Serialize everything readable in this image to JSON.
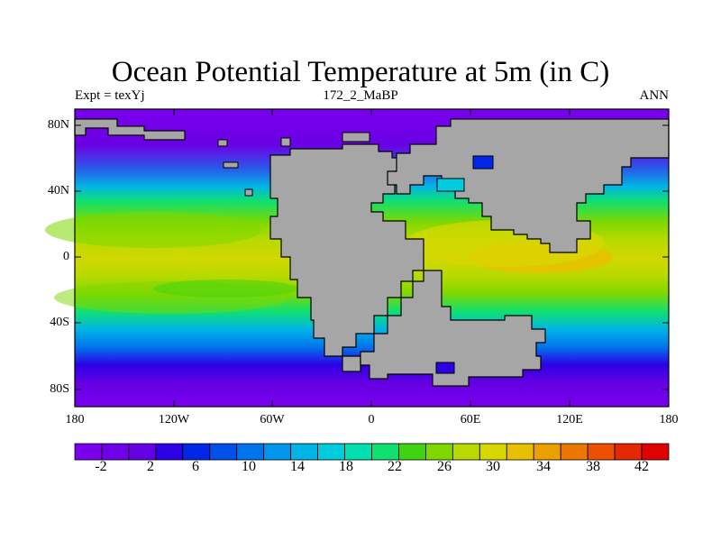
{
  "title": "Ocean Potential Temperature at 5m (in C)",
  "left_label": "Expt = texYj",
  "center_label": "172_2_MaBP",
  "right_label": "ANN",
  "colors": {
    "land": "#a6a6a6",
    "coast": "#000000",
    "scale": [
      "#7a00ee",
      "#6f00e8",
      "#6400e2",
      "#2d00e6",
      "#0028e6",
      "#0050ea",
      "#0074ec",
      "#0096ec",
      "#00b4e6",
      "#00cce0",
      "#00e0b0",
      "#10e070",
      "#40d410",
      "#7ed800",
      "#b8da00",
      "#d8d800",
      "#e8c000",
      "#eca000",
      "#ec7800",
      "#ec5000",
      "#e62800",
      "#e00000"
    ]
  },
  "map": {
    "lat_ticks": [
      "80N",
      "40N",
      "0",
      "40S",
      "80S"
    ],
    "lon_ticks": [
      "180",
      "120W",
      "60W",
      "0",
      "60E",
      "120E",
      "180"
    ]
  },
  "colorbar": {
    "labels": [
      "-2",
      "2",
      "6",
      "10",
      "14",
      "18",
      "22",
      "26",
      "30",
      "34",
      "38",
      "42"
    ]
  }
}
